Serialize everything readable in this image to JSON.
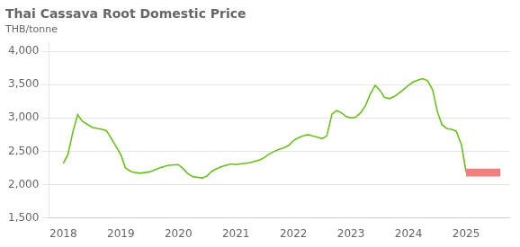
{
  "chart_data": {
    "type": "line",
    "title": "Thai Cassava Root Domestic Price",
    "ylabel": "THB/tonne",
    "x": [
      2018.0,
      2018.08,
      2018.17,
      2018.25,
      2018.33,
      2018.5,
      2018.67,
      2018.75,
      2018.83,
      2019.0,
      2019.08,
      2019.17,
      2019.25,
      2019.33,
      2019.5,
      2019.67,
      2019.83,
      2020.0,
      2020.08,
      2020.17,
      2020.25,
      2020.33,
      2020.42,
      2020.5,
      2020.58,
      2020.67,
      2020.75,
      2020.83,
      2020.92,
      2021.0,
      2021.08,
      2021.17,
      2021.25,
      2021.33,
      2021.42,
      2021.5,
      2021.58,
      2021.67,
      2021.75,
      2021.83,
      2021.92,
      2022.0,
      2022.08,
      2022.17,
      2022.25,
      2022.33,
      2022.42,
      2022.5,
      2022.58,
      2022.67,
      2022.75,
      2022.83,
      2022.92,
      2023.0,
      2023.08,
      2023.17,
      2023.25,
      2023.33,
      2023.42,
      2023.5,
      2023.58,
      2023.67,
      2023.75,
      2023.83,
      2023.92,
      2024.0,
      2024.08,
      2024.17,
      2024.25,
      2024.33,
      2024.42,
      2024.5,
      2024.58,
      2024.67,
      2024.75,
      2024.83,
      2024.92,
      2025.0
    ],
    "values": [
      2320,
      2450,
      2800,
      3050,
      2950,
      2860,
      2830,
      2810,
      2700,
      2450,
      2250,
      2200,
      2180,
      2170,
      2190,
      2250,
      2290,
      2300,
      2240,
      2160,
      2120,
      2110,
      2100,
      2130,
      2200,
      2240,
      2270,
      2290,
      2310,
      2300,
      2310,
      2320,
      2330,
      2350,
      2370,
      2410,
      2460,
      2500,
      2530,
      2550,
      2590,
      2660,
      2700,
      2730,
      2750,
      2730,
      2710,
      2690,
      2730,
      3060,
      3110,
      3080,
      3020,
      3000,
      3010,
      3080,
      3180,
      3350,
      3490,
      3420,
      3310,
      3290,
      3320,
      3370,
      3430,
      3490,
      3540,
      3570,
      3590,
      3560,
      3420,
      3100,
      2900,
      2840,
      2830,
      2800,
      2600,
      2190
    ],
    "color": "#6abf1e",
    "band": {
      "x": [
        2025.0,
        2025.6
      ],
      "low": [
        2120,
        2120
      ],
      "high": [
        2240,
        2240
      ],
      "color": "#f08080"
    },
    "xlim": [
      2017.75,
      2025.75
    ],
    "xticks": [
      2018,
      2019,
      2020,
      2021,
      2022,
      2023,
      2024,
      2025
    ],
    "ylim": [
      1500,
      4150
    ],
    "yticks": [
      {
        "value": 1500,
        "label": "1,500"
      },
      {
        "value": 2000,
        "label": "2,000"
      },
      {
        "value": 2500,
        "label": "2,500"
      },
      {
        "value": 3000,
        "label": "3,000"
      },
      {
        "value": 3500,
        "label": "3,500"
      },
      {
        "value": 4000,
        "label": "4,000"
      }
    ],
    "grid": "y"
  }
}
